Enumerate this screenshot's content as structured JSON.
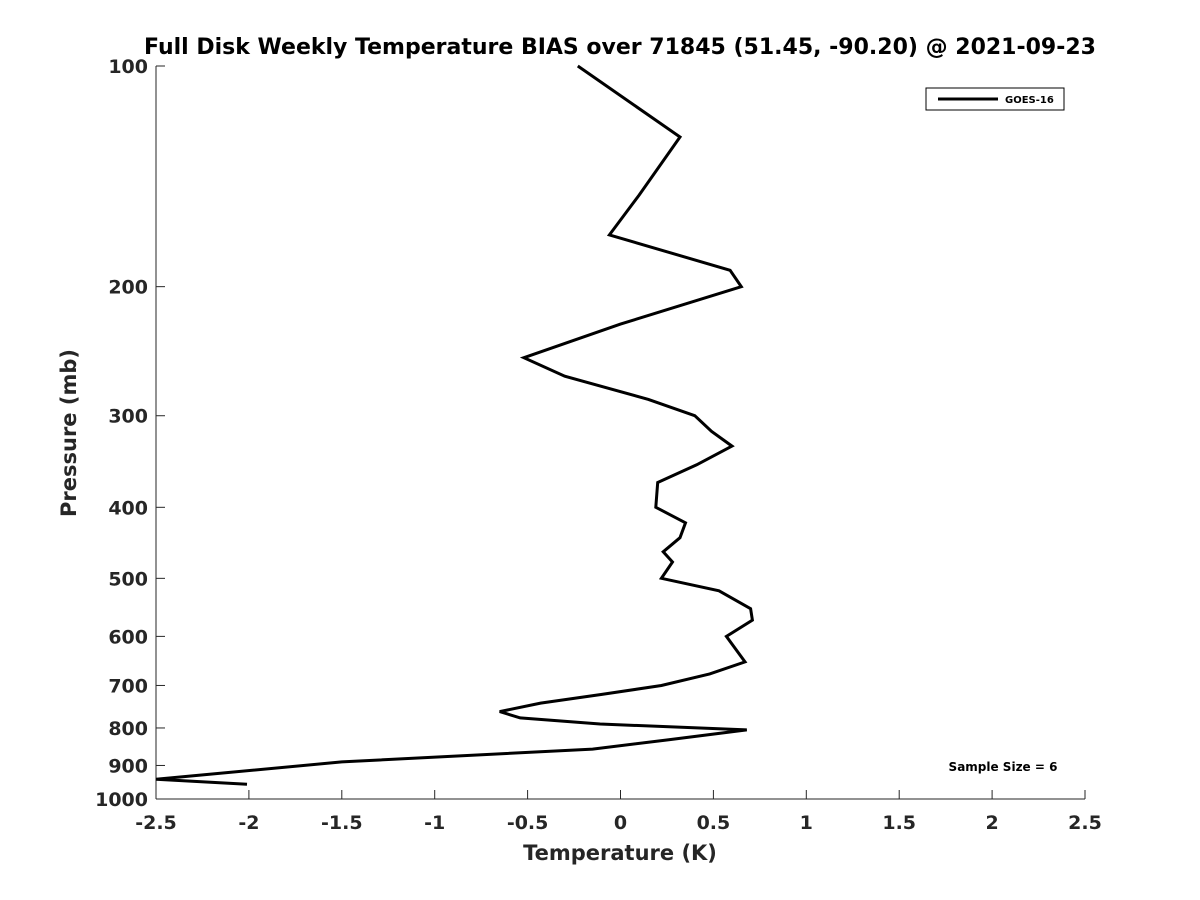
{
  "chart_data": {
    "type": "line",
    "title": "Full Disk Weekly Temperature BIAS over 71845 (51.45, -90.20) @ 2021-09-23",
    "xlabel": "Temperature (K)",
    "ylabel": "Pressure (mb)",
    "xlim": [
      -2.5,
      2.5
    ],
    "ylim": [
      100,
      1000
    ],
    "y_scale": "log",
    "y_reversed": true,
    "grid": false,
    "legend_position": "top-right",
    "x_ticks": [
      -2.5,
      -2,
      -1.5,
      -1,
      -0.5,
      0,
      0.5,
      1,
      1.5,
      2,
      2.5
    ],
    "x_tick_labels": [
      "-2.5",
      "-2",
      "-1.5",
      "-1",
      "-0.5",
      "0",
      "0.5",
      "1",
      "1.5",
      "2",
      "2.5"
    ],
    "y_ticks": [
      100,
      200,
      300,
      400,
      500,
      600,
      700,
      800,
      900,
      1000
    ],
    "y_tick_labels": [
      "100",
      "200",
      "300",
      "400",
      "500",
      "600",
      "700",
      "800",
      "900",
      "1000"
    ],
    "series": [
      {
        "name": "GOES-16",
        "color": "#000000",
        "points": [
          {
            "x": -0.23,
            "p": 100
          },
          {
            "x": 0.32,
            "p": 125
          },
          {
            "x": 0.1,
            "p": 150
          },
          {
            "x": -0.06,
            "p": 170
          },
          {
            "x": 0.59,
            "p": 190
          },
          {
            "x": 0.65,
            "p": 200
          },
          {
            "x": 0.0,
            "p": 225
          },
          {
            "x": -0.52,
            "p": 250
          },
          {
            "x": -0.3,
            "p": 265
          },
          {
            "x": 0.15,
            "p": 285
          },
          {
            "x": 0.4,
            "p": 300
          },
          {
            "x": 0.49,
            "p": 315
          },
          {
            "x": 0.6,
            "p": 330
          },
          {
            "x": 0.41,
            "p": 350
          },
          {
            "x": 0.2,
            "p": 370
          },
          {
            "x": 0.19,
            "p": 400
          },
          {
            "x": 0.35,
            "p": 420
          },
          {
            "x": 0.32,
            "p": 440
          },
          {
            "x": 0.23,
            "p": 460
          },
          {
            "x": 0.28,
            "p": 475
          },
          {
            "x": 0.22,
            "p": 500
          },
          {
            "x": 0.53,
            "p": 520
          },
          {
            "x": 0.7,
            "p": 550
          },
          {
            "x": 0.71,
            "p": 570
          },
          {
            "x": 0.57,
            "p": 600
          },
          {
            "x": 0.67,
            "p": 650
          },
          {
            "x": 0.48,
            "p": 675
          },
          {
            "x": 0.22,
            "p": 700
          },
          {
            "x": -0.1,
            "p": 720
          },
          {
            "x": -0.43,
            "p": 740
          },
          {
            "x": -0.65,
            "p": 760
          },
          {
            "x": -0.54,
            "p": 775
          },
          {
            "x": -0.11,
            "p": 790
          },
          {
            "x": 0.68,
            "p": 805
          },
          {
            "x": 0.26,
            "p": 830
          },
          {
            "x": -0.15,
            "p": 855
          },
          {
            "x": -1.5,
            "p": 890
          },
          {
            "x": -2.5,
            "p": 940
          },
          {
            "x": -2.01,
            "p": 955
          }
        ]
      }
    ],
    "annotations": [
      {
        "text": "Sample Size = 6",
        "position": "bottom-right"
      }
    ]
  }
}
